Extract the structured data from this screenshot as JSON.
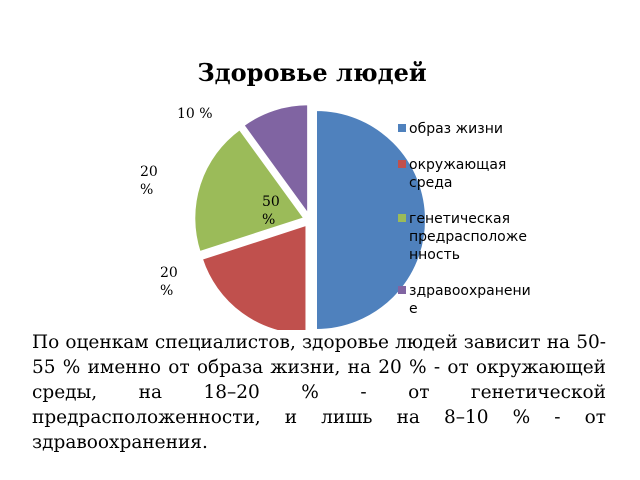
{
  "chart_data": {
    "type": "pie",
    "title": "Здоровье людей",
    "categories": [
      "образ жизни",
      "окружающая среда",
      "генетическая предрасположенность",
      "здравоохранение"
    ],
    "values": [
      50,
      20,
      20,
      10
    ],
    "colors": [
      "#4F81BD",
      "#C0504D",
      "#9BBB59",
      "#8064A2"
    ],
    "data_labels": [
      [
        "50",
        "%"
      ],
      [
        "20",
        "%"
      ],
      [
        "20",
        "%"
      ],
      [
        "10 %"
      ]
    ],
    "legend": {
      "position": "right",
      "entries": [
        [
          "образ жизни"
        ],
        [
          "окружающая",
          "среда"
        ],
        [
          "генетическая",
          "предрасположе",
          "нность"
        ],
        [
          "здравоохранени",
          "е"
        ]
      ]
    },
    "exploded": true
  },
  "caption": "По оценкам специалистов, здоровье людей зависит на 50-55 % именно от образа жизни, на 20 % - от окружающей среды, на 18–20 % - от генетической предрасположенности, и лишь на 8–10 % - от здравоохранения."
}
